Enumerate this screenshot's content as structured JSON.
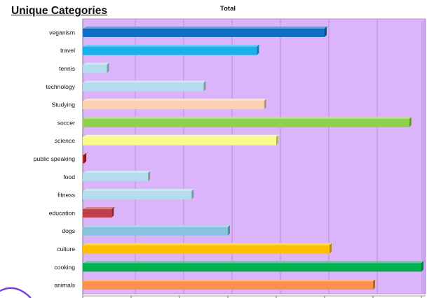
{
  "page_title": "Unique Categories",
  "colors": {
    "plot_background": "#dcb4fb",
    "plot_side_wall": "#cfa3f4",
    "gridline": "#a88bbd",
    "decorative_curve": "#7a3fe0"
  },
  "chart_data": {
    "type": "bar",
    "orientation": "horizontal",
    "three_d": true,
    "title": "Total",
    "xlabel": "",
    "ylabel": "",
    "legend": "none",
    "grid": true,
    "xlim": [
      0,
      7
    ],
    "categories": [
      "veganism",
      "travel",
      "tennis",
      "technology",
      "Studying",
      "soccer",
      "science",
      "public speaking",
      "food",
      "fitness",
      "education",
      "dogs",
      "culture",
      "cooking",
      "animals"
    ],
    "series": [
      {
        "values": [
          5.0,
          3.6,
          0.5,
          2.5,
          3.75,
          6.75,
          4.0,
          0.03,
          1.35,
          2.25,
          0.6,
          3.0,
          5.1,
          7.0,
          6.0
        ]
      }
    ],
    "bar_colors": [
      "#0f6fc6",
      "#1ab0ee",
      "#b4dcee",
      "#b4dcee",
      "#fcd1b0",
      "#8fd14f",
      "#fbfb8a",
      "#c0202a",
      "#b4dcee",
      "#b4dcee",
      "#c0404a",
      "#86c3de",
      "#ffc000",
      "#00b050",
      "#ff9050"
    ]
  }
}
